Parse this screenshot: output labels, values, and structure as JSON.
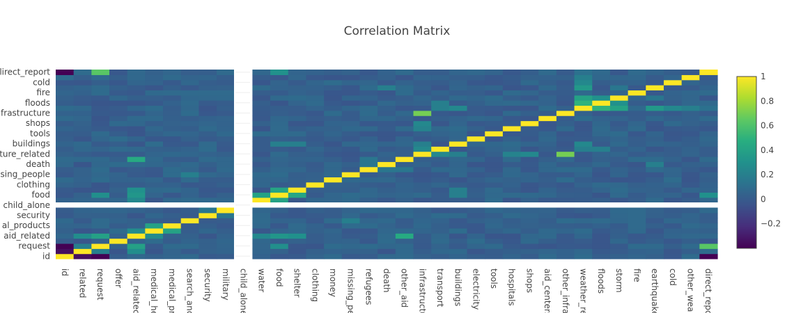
{
  "chart_data": {
    "type": "heatmap",
    "title": "Correlation Matrix",
    "colorscale": "viridis",
    "colorscale_stops": [
      "#440154",
      "#472d7b",
      "#3b528b",
      "#2c728e",
      "#21918c",
      "#28ae80",
      "#5ec962",
      "#addc30",
      "#fde725"
    ],
    "zmin": -0.4,
    "zmax": 1.0,
    "colorbar_ticks": [
      "1",
      "0.8",
      "0.6",
      "0.4",
      "0.2",
      "0",
      "−0.2"
    ],
    "colorbar_tick_values": [
      1,
      0.8,
      0.6,
      0.4,
      0.2,
      0,
      -0.2
    ],
    "x_labels": [
      "id",
      "related",
      "request",
      "offer",
      "aid_related",
      "medical_help",
      "medical_products",
      "search_and_rescue",
      "security",
      "military",
      "child_alone",
      "water",
      "food",
      "shelter",
      "clothing",
      "money",
      "missing_people",
      "refugees",
      "death",
      "other_aid",
      "infrastructure_related",
      "transport",
      "buildings",
      "electricity",
      "tools",
      "hospitals",
      "shops",
      "aid_centers",
      "other_infrastructure",
      "weather_related",
      "floods",
      "storm",
      "fire",
      "earthquake",
      "cold",
      "other_weather",
      "direct_report"
    ],
    "x_tick_display": [
      "id",
      "related",
      "request",
      "offer",
      "aid_relatec",
      "medical_he",
      "medical_pr",
      "search_anc",
      "security",
      "military",
      "child_alone",
      "water",
      "food",
      "shelter",
      "clothing",
      "money",
      "missing_pe",
      "refugees",
      "death",
      "other_aid",
      "infrastructu",
      "transport",
      "buildings",
      "electricity",
      "tools",
      "hospitals",
      "shops",
      "aid_centers",
      "other_infra",
      "weather_re",
      "floods",
      "storm",
      "fire",
      "earthquake",
      "cold",
      "other_wea",
      "direct_repc"
    ],
    "y_tick_display": [
      "id",
      "request",
      "aid_related",
      "al_products",
      "security",
      "child_alone",
      "food",
      "clothing",
      "sing_people",
      "death",
      "ture_related",
      "buildings",
      "tools",
      "shops",
      "frastructure",
      "floods",
      "fire",
      "cold",
      "lirect_report"
    ],
    "y_tick_indices": [
      0,
      2,
      4,
      6,
      8,
      10,
      12,
      14,
      16,
      18,
      20,
      22,
      24,
      26,
      28,
      30,
      32,
      34,
      36
    ],
    "excluded_index": 10,
    "notable_correlations": [
      {
        "a": "id",
        "b": "request",
        "value": -0.4
      },
      {
        "a": "id",
        "b": "related",
        "value": -0.35
      },
      {
        "a": "id",
        "b": "direct_report",
        "value": -0.4
      },
      {
        "a": "request",
        "b": "direct_report",
        "value": 0.63
      },
      {
        "a": "request",
        "b": "aid_related",
        "value": 0.39
      },
      {
        "a": "related",
        "b": "aid_related",
        "value": 0.28
      },
      {
        "a": "related",
        "b": "request",
        "value": 0.2
      },
      {
        "a": "aid_related",
        "b": "medical_help",
        "value": 0.27
      },
      {
        "a": "aid_related",
        "b": "food",
        "value": 0.33
      },
      {
        "a": "aid_related",
        "b": "water",
        "value": 0.25
      },
      {
        "a": "aid_related",
        "b": "shelter",
        "value": 0.3
      },
      {
        "a": "aid_related",
        "b": "other_aid",
        "value": 0.45
      },
      {
        "a": "medical_help",
        "b": "medical_products",
        "value": 0.4
      },
      {
        "a": "water",
        "b": "food",
        "value": 0.4
      },
      {
        "a": "food",
        "b": "shelter",
        "value": 0.42
      },
      {
        "a": "food",
        "b": "buildings",
        "value": 0.2
      },
      {
        "a": "food",
        "b": "direct_report",
        "value": 0.3
      },
      {
        "a": "request",
        "b": "food",
        "value": 0.29
      },
      {
        "a": "shelter",
        "b": "buildings",
        "value": 0.2
      },
      {
        "a": "infrastructure_related",
        "b": "transport",
        "value": 0.25
      },
      {
        "a": "infrastructure_related",
        "b": "shops",
        "value": 0.25
      },
      {
        "a": "infrastructure_related",
        "b": "other_infrastructure",
        "value": 0.7
      },
      {
        "a": "infrastructure_related",
        "b": "hospitals",
        "value": 0.22
      },
      {
        "a": "infrastructure_related",
        "b": "buildings",
        "value": 0.2
      },
      {
        "a": "buildings",
        "b": "weather_related",
        "value": 0.25
      },
      {
        "a": "weather_related",
        "b": "floods",
        "value": 0.5
      },
      {
        "a": "weather_related",
        "b": "storm",
        "value": 0.4
      },
      {
        "a": "weather_related",
        "b": "earthquake",
        "value": 0.35
      },
      {
        "a": "weather_related",
        "b": "cold",
        "value": 0.25
      },
      {
        "a": "weather_related",
        "b": "other_weather",
        "value": 0.2
      },
      {
        "a": "weather_related",
        "b": "transport",
        "value": 0.2
      },
      {
        "a": "weather_related",
        "b": "direct_report",
        "value": 0.12
      },
      {
        "a": "floods",
        "b": "storm",
        "value": 0.3
      },
      {
        "a": "floods",
        "b": "transport",
        "value": 0.2
      },
      {
        "a": "storm",
        "b": "earthquake",
        "value": 0.15
      },
      {
        "a": "death",
        "b": "refugees",
        "value": 0.15
      },
      {
        "a": "death",
        "b": "earthquake",
        "value": 0.2
      },
      {
        "a": "missing_people",
        "b": "search_and_rescue",
        "value": 0.2
      },
      {
        "a": "refugees",
        "b": "other_aid",
        "value": 0.15
      },
      {
        "a": "security",
        "b": "military",
        "value": 0.15
      }
    ]
  }
}
